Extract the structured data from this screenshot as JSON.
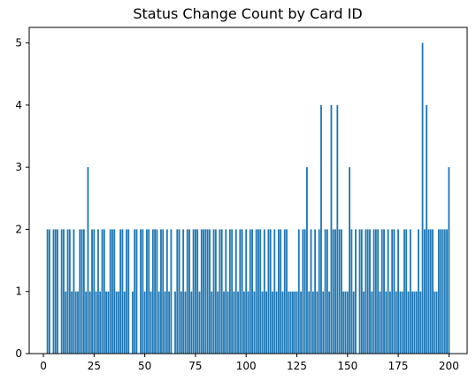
{
  "chart_data": {
    "type": "bar",
    "title": "Status Change Count by Card ID",
    "xlabel": "",
    "ylabel": "",
    "xlim": [
      -7,
      209
    ],
    "ylim": [
      0,
      5.25
    ],
    "x_ticks": [
      0,
      25,
      50,
      75,
      100,
      125,
      150,
      175,
      200
    ],
    "y_ticks": [
      0,
      1,
      2,
      3,
      4,
      5
    ],
    "bar_color": "#1f77b4",
    "bar_width": 0.8,
    "grid": false,
    "legend": "none",
    "x": [
      1,
      2,
      3,
      4,
      5,
      6,
      7,
      8,
      9,
      10,
      11,
      12,
      13,
      14,
      15,
      16,
      17,
      18,
      19,
      20,
      21,
      22,
      23,
      24,
      25,
      26,
      27,
      28,
      29,
      30,
      31,
      32,
      33,
      34,
      35,
      36,
      37,
      38,
      39,
      40,
      41,
      42,
      43,
      44,
      45,
      46,
      47,
      48,
      49,
      50,
      51,
      52,
      53,
      54,
      55,
      56,
      57,
      58,
      59,
      60,
      61,
      62,
      63,
      64,
      65,
      66,
      67,
      68,
      69,
      70,
      71,
      72,
      73,
      74,
      75,
      76,
      77,
      78,
      79,
      80,
      81,
      82,
      83,
      84,
      85,
      86,
      87,
      88,
      89,
      90,
      91,
      92,
      93,
      94,
      95,
      96,
      97,
      98,
      99,
      100,
      101,
      102,
      103,
      104,
      105,
      106,
      107,
      108,
      109,
      110,
      111,
      112,
      113,
      114,
      115,
      116,
      117,
      118,
      119,
      120,
      121,
      122,
      123,
      124,
      125,
      126,
      127,
      128,
      129,
      130,
      131,
      132,
      133,
      134,
      135,
      136,
      137,
      138,
      139,
      140,
      141,
      142,
      143,
      144,
      145,
      146,
      147,
      148,
      149,
      150,
      151,
      152,
      153,
      154,
      155,
      156,
      157,
      158,
      159,
      160,
      161,
      162,
      163,
      164,
      165,
      166,
      167,
      168,
      169,
      170,
      171,
      172,
      173,
      174,
      175,
      176,
      177,
      178,
      179,
      180,
      181,
      182,
      183,
      184,
      185,
      186,
      187,
      188,
      189,
      190,
      191,
      192,
      193,
      194,
      195,
      196,
      197,
      198,
      199,
      200
    ],
    "values": [
      0,
      2,
      2,
      0,
      2,
      2,
      2,
      0,
      2,
      2,
      1,
      2,
      2,
      1,
      2,
      1,
      1,
      2,
      2,
      2,
      1,
      3,
      1,
      2,
      2,
      1,
      2,
      1,
      2,
      2,
      1,
      1,
      2,
      2,
      2,
      1,
      1,
      2,
      2,
      1,
      2,
      2,
      0,
      1,
      2,
      2,
      0,
      2,
      2,
      1,
      2,
      2,
      1,
      2,
      2,
      2,
      1,
      2,
      2,
      1,
      2,
      1,
      2,
      0,
      1,
      2,
      2,
      1,
      2,
      1,
      2,
      2,
      1,
      2,
      2,
      2,
      1,
      2,
      2,
      2,
      2,
      2,
      1,
      2,
      2,
      1,
      2,
      2,
      1,
      2,
      1,
      2,
      2,
      1,
      2,
      1,
      2,
      2,
      1,
      2,
      1,
      2,
      2,
      1,
      2,
      2,
      2,
      1,
      2,
      1,
      2,
      2,
      1,
      2,
      1,
      2,
      2,
      1,
      2,
      2,
      1,
      1,
      1,
      1,
      1,
      2,
      1,
      2,
      2,
      3,
      1,
      2,
      1,
      2,
      1,
      2,
      4,
      1,
      2,
      2,
      1,
      4,
      2,
      2,
      4,
      2,
      2,
      1,
      1,
      1,
      3,
      2,
      1,
      2,
      0,
      2,
      2,
      1,
      2,
      2,
      2,
      1,
      2,
      2,
      2,
      1,
      2,
      2,
      1,
      2,
      1,
      2,
      2,
      1,
      2,
      1,
      1,
      2,
      2,
      1,
      2,
      1,
      1,
      1,
      2,
      1,
      5,
      2,
      4,
      2,
      2,
      2,
      1,
      1,
      2,
      2,
      2,
      2,
      2,
      3
    ]
  }
}
